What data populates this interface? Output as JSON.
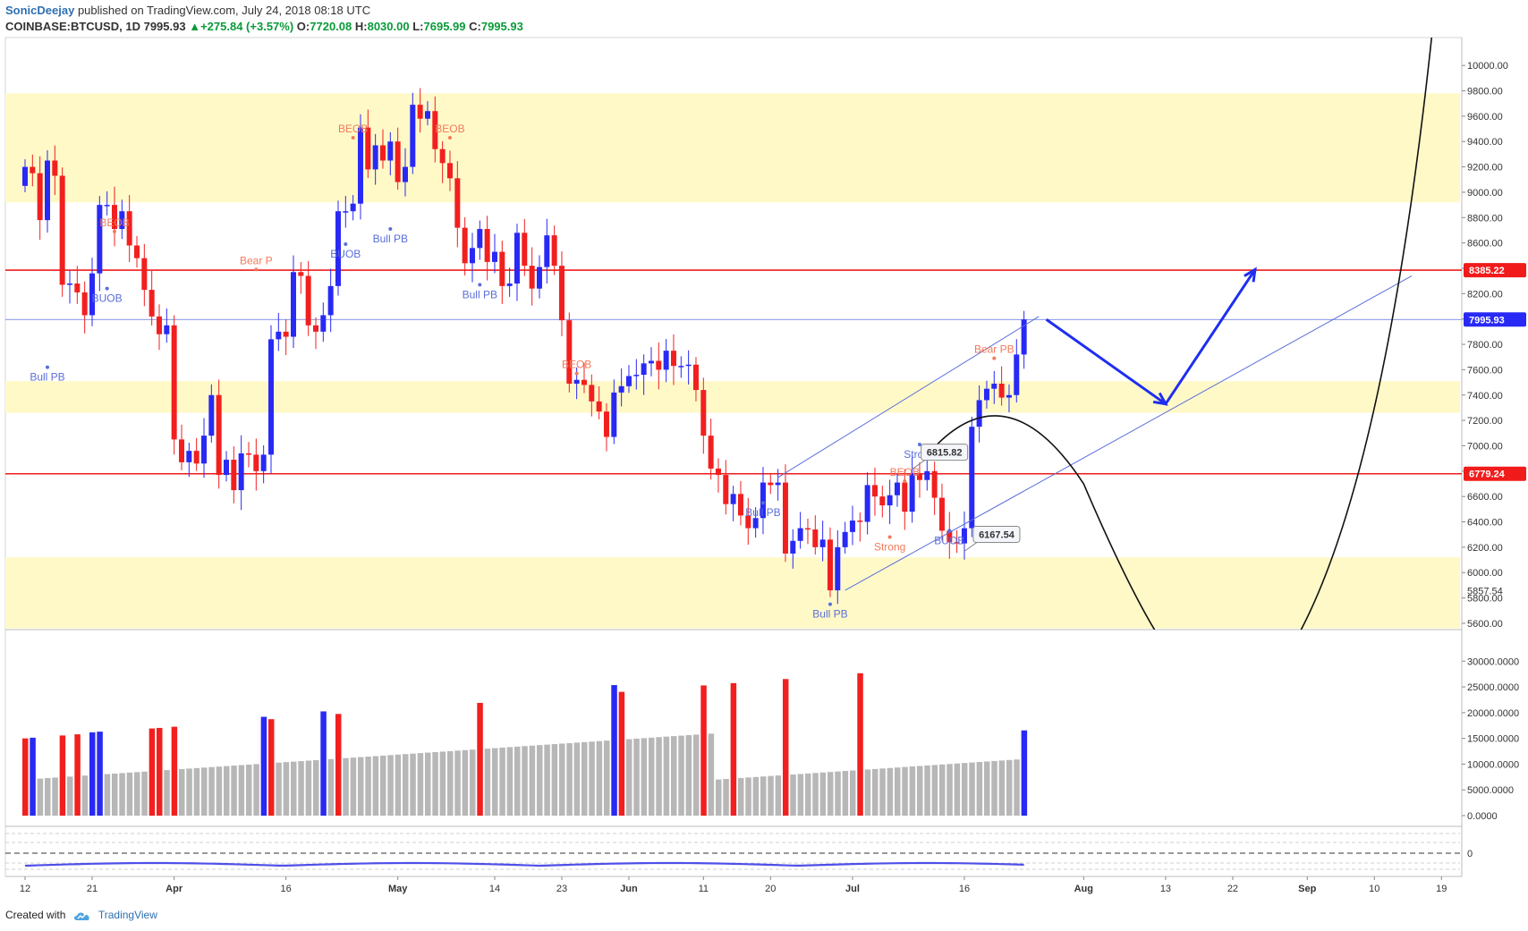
{
  "header": {
    "author": "SonicDeejay",
    "published_text": "published on TradingView.com, July 24, 2018 08:18 UTC",
    "symbol": "COINBASE:BTCUSD, 1D",
    "last": "7995.93",
    "change": "+275.84 (+3.57%)",
    "open_label": "O:",
    "open": "7720.08",
    "high_label": "H:",
    "high": "8030.00",
    "low_label": "L:",
    "low": "7695.99",
    "close_label": "C:",
    "close": "7995.93"
  },
  "footer": {
    "created_with": "Created with",
    "brand": "TradingView"
  },
  "colors": {
    "up": "#2929f5",
    "down": "#f21f1f",
    "zone": "#fff9c8",
    "hline": "#f11b1b",
    "neutral_vol": "#b7b7b7",
    "arrow": "#1f2ef0"
  },
  "chart_data": {
    "type": "candlestick",
    "symbol": "COINBASE:BTCUSD",
    "interval": "1D",
    "ylim": [
      5550,
      10220
    ],
    "x_ticks": [
      {
        "day": 0,
        "label": "12"
      },
      {
        "day": 9,
        "label": "21"
      },
      {
        "day": 20,
        "label": "Apr"
      },
      {
        "day": 35,
        "label": "16"
      },
      {
        "day": 50,
        "label": "May"
      },
      {
        "day": 63,
        "label": "14"
      },
      {
        "day": 72,
        "label": "23"
      },
      {
        "day": 81,
        "label": "Jun"
      },
      {
        "day": 91,
        "label": "11"
      },
      {
        "day": 100,
        "label": "20"
      },
      {
        "day": 111,
        "label": "Jul"
      },
      {
        "day": 126,
        "label": "16"
      },
      {
        "day": 142,
        "label": "Aug"
      },
      {
        "day": 153,
        "label": "13"
      },
      {
        "day": 162,
        "label": "22"
      },
      {
        "day": 172,
        "label": "Sep"
      },
      {
        "day": 181,
        "label": "10"
      },
      {
        "day": 190,
        "label": "19"
      }
    ],
    "y_ticks": [
      "10000.00",
      "9800.00",
      "9600.00",
      "9400.00",
      "9200.00",
      "9000.00",
      "8800.00",
      "8600.00",
      "8400.00",
      "8200.00",
      "8000.00",
      "7800.00",
      "7600.00",
      "7400.00",
      "7200.00",
      "7000.00",
      "6800.00",
      "6600.00",
      "6400.00",
      "6200.00",
      "6000.00",
      "5800.00",
      "5600.00"
    ],
    "price_tags": [
      {
        "value": 8385.22,
        "label": "8385.22",
        "color": "#f11b1b"
      },
      {
        "value": 7995.93,
        "label": "7995.93",
        "color": "#2929f5"
      },
      {
        "value": 6779.24,
        "label": "6779.24",
        "color": "#f11b1b"
      }
    ],
    "low_marker": {
      "value": 5857.54,
      "label": "5857.54"
    },
    "horizontal_lines": [
      8385.22,
      6779.24
    ],
    "current_price_line": 7995.93,
    "zones": [
      [
        8920,
        9780
      ],
      [
        7260,
        7510
      ],
      [
        5560,
        6120
      ]
    ],
    "closes": [
      9200,
      9150,
      8780,
      9250,
      9130,
      8270,
      8280,
      8210,
      8030,
      8360,
      8900,
      8900,
      8710,
      8850,
      8580,
      8480,
      8230,
      8020,
      7880,
      7950,
      7050,
      6870,
      6960,
      6860,
      7080,
      7400,
      6770,
      6890,
      6650,
      6940,
      6930,
      6800,
      6930,
      7840,
      7900,
      7860,
      8370,
      8340,
      7950,
      7900,
      8030,
      8260,
      8850,
      8850,
      8910,
      9510,
      9180,
      9370,
      9250,
      9400,
      9080,
      9200,
      9690,
      9580,
      9640,
      9340,
      9230,
      9110,
      8720,
      8440,
      8560,
      8710,
      8450,
      8530,
      8260,
      8280,
      8680,
      8420,
      8240,
      8410,
      8660,
      8420,
      7990,
      7490,
      7520,
      7480,
      7350,
      7270,
      7070,
      7420,
      7470,
      7550,
      7560,
      7650,
      7670,
      7600,
      7750,
      7630,
      7630,
      7640,
      7440,
      7080,
      6820,
      6770,
      6540,
      6620,
      6450,
      6350,
      6430,
      6710,
      6690,
      6710,
      6150,
      6250,
      6350,
      6340,
      6200,
      6260,
      5860,
      6200,
      6320,
      6410,
      6400,
      6690,
      6600,
      6530,
      6610,
      6710,
      6480,
      6780,
      6730,
      6800,
      6590,
      6330,
      6240,
      6230,
      6350,
      7150,
      7360,
      7450,
      7490,
      7380,
      7400,
      7720,
      7995.93
    ],
    "volume_scale_labels": [
      "30000.0000",
      "25000.0000",
      "20000.0000",
      "15000.0000",
      "10000.0000",
      "5000.0000",
      "0.0000"
    ],
    "volume_ylim": [
      0,
      33000
    ],
    "volume_highlight_up_days": [
      1,
      9,
      10,
      32,
      40,
      79,
      134,
      135,
      138
    ],
    "volume_highlight_down_days": [
      0,
      5,
      7,
      17,
      18,
      20,
      33,
      42,
      61,
      80,
      91,
      95,
      102,
      112
    ],
    "oscillator_zero_label": "0",
    "annotations": [
      {
        "day": 12,
        "value": 8690,
        "text": "BEOB",
        "color": "#f27a5a",
        "place": "above"
      },
      {
        "day": 3,
        "value": 7620,
        "text": "Bull PB",
        "color": "#5a6ed9",
        "place": "below"
      },
      {
        "day": 11,
        "value": 8240,
        "text": "BUOB",
        "color": "#5a6ed9",
        "place": "below"
      },
      {
        "day": 31,
        "value": 8390,
        "text": "Bear P",
        "color": "#f27a5a",
        "place": "above"
      },
      {
        "day": 43,
        "value": 8590,
        "text": "BUOB",
        "color": "#5a6ed9",
        "place": "below"
      },
      {
        "day": 44,
        "value": 9430,
        "text": "BEOB",
        "color": "#f27a5a",
        "place": "above"
      },
      {
        "day": 49,
        "value": 8710,
        "text": "Bull PB",
        "color": "#5a6ed9",
        "place": "below"
      },
      {
        "day": 57,
        "value": 9430,
        "text": "BEOB",
        "color": "#f27a5a",
        "place": "above"
      },
      {
        "day": 61,
        "value": 8270,
        "text": "Bull PB",
        "color": "#5a6ed9",
        "place": "below"
      },
      {
        "day": 74,
        "value": 7570,
        "text": "BEOB",
        "color": "#f27a5a",
        "place": "above"
      },
      {
        "day": 99,
        "value": 6550,
        "text": "Bull PB",
        "color": "#5a6ed9",
        "place": "below"
      },
      {
        "day": 108,
        "value": 5750,
        "text": "Bull PB",
        "color": "#5a6ed9",
        "place": "below"
      },
      {
        "day": 118,
        "value": 6720,
        "text": "BEOB",
        "color": "#f27a5a",
        "place": "above"
      },
      {
        "day": 120,
        "value": 7010,
        "text": "Strong",
        "color": "#5a6ed9",
        "place": "below"
      },
      {
        "day": 116,
        "value": 6280,
        "text": "Strong",
        "color": "#f27a5a",
        "place": "below"
      },
      {
        "day": 124,
        "value": 6330,
        "text": "BUOB",
        "color": "#5a6ed9",
        "place": "below"
      },
      {
        "day": 130,
        "value": 7690,
        "text": "Bear PB",
        "color": "#f27a5a",
        "place": "above"
      }
    ],
    "callouts": [
      {
        "day": 119,
        "value": 6815.82,
        "label": "6815.82"
      },
      {
        "day": 126,
        "value": 6167.54,
        "label": "6167.54"
      }
    ],
    "channel_lines": [
      {
        "from_day": 101,
        "from_value": 6750,
        "to_day": 136,
        "to_value": 8020
      },
      {
        "from_day": 110,
        "from_value": 5860,
        "to_day": 186,
        "to_value": 8340
      }
    ],
    "forecast_path": [
      {
        "day": 137,
        "value": 7995.93
      },
      {
        "day": 153,
        "value": 7330
      },
      {
        "day": 165,
        "value": 8390
      }
    ]
  }
}
